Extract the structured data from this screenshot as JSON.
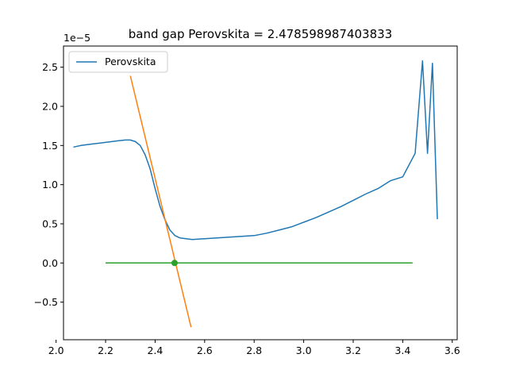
{
  "chart_data": {
    "type": "line",
    "title": "band gap Perovskita = 2.478598987403833",
    "xlabel": "",
    "ylabel": "",
    "y_offset_label": "1e−5",
    "xlim": [
      2.03,
      3.62
    ],
    "ylim": [
      -0.98,
      2.77
    ],
    "x_ticks": [
      2.0,
      2.2,
      2.4,
      2.6,
      2.8,
      3.0,
      3.2,
      3.4,
      3.6
    ],
    "x_tick_labels": [
      "2.0",
      "2.2",
      "2.4",
      "2.6",
      "2.8",
      "3.0",
      "3.2",
      "3.4",
      "3.6"
    ],
    "y_ticks": [
      -0.5,
      0.0,
      0.5,
      1.0,
      1.5,
      2.0,
      2.5
    ],
    "y_tick_labels": [
      "−0.5",
      "0.0",
      "0.5",
      "1.0",
      "1.5",
      "2.0",
      "2.5"
    ],
    "grid": false,
    "legend_position": "top-left",
    "series": [
      {
        "name": "Perovskita",
        "color": "#1f77b4",
        "x": [
          2.07,
          2.1,
          2.15,
          2.2,
          2.25,
          2.28,
          2.3,
          2.32,
          2.34,
          2.36,
          2.38,
          2.4,
          2.42,
          2.44,
          2.46,
          2.48,
          2.5,
          2.55,
          2.6,
          2.65,
          2.7,
          2.75,
          2.8,
          2.85,
          2.9,
          2.95,
          3.0,
          3.05,
          3.1,
          3.15,
          3.2,
          3.25,
          3.3,
          3.35,
          3.4,
          3.45,
          3.48,
          3.5,
          3.52,
          3.54
        ],
        "y": [
          1.48,
          1.5,
          1.52,
          1.54,
          1.56,
          1.57,
          1.57,
          1.55,
          1.5,
          1.38,
          1.2,
          0.95,
          0.72,
          0.55,
          0.42,
          0.35,
          0.32,
          0.3,
          0.31,
          0.32,
          0.33,
          0.34,
          0.35,
          0.38,
          0.42,
          0.46,
          0.52,
          0.58,
          0.65,
          0.72,
          0.8,
          0.88,
          0.95,
          1.05,
          1.1,
          1.4,
          2.58,
          1.4,
          2.55,
          0.56
        ]
      },
      {
        "name": "",
        "color": "#ff7f0e",
        "x": [
          2.3,
          2.545
        ],
        "y": [
          2.39,
          -0.82
        ]
      },
      {
        "name": "",
        "color": "#2ca02c",
        "x": [
          2.2,
          3.44
        ],
        "y": [
          0.0,
          0.0
        ]
      }
    ],
    "band_gap_point": {
      "x": 2.478598987403833,
      "y": 0.0,
      "color": "#2ca02c"
    }
  }
}
